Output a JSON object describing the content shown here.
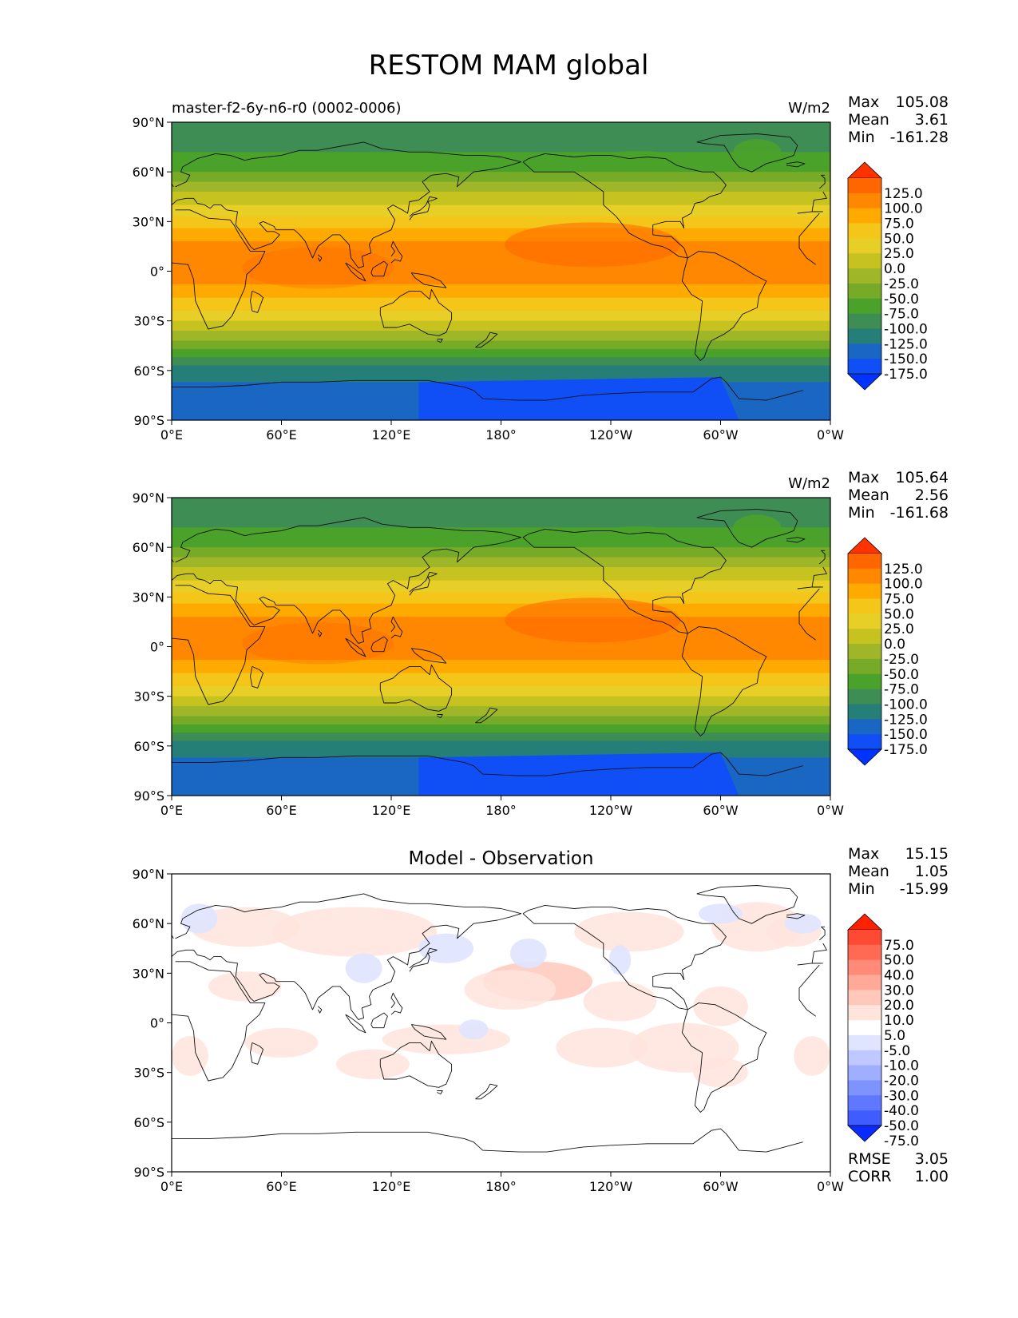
{
  "figure": {
    "title": "RESTOM MAM global"
  },
  "chart_data": [
    {
      "type": "heatmap",
      "panel": "model",
      "title_left": "master-f2-6y-n6-r0 (0002-0006)",
      "title_center": "",
      "units": "W/m2",
      "stats": [
        {
          "label": "Max",
          "value": "105.08"
        },
        {
          "label": "Mean",
          "value": "3.61"
        },
        {
          "label": "Min",
          "value": "-161.28"
        }
      ],
      "bottom_stats": [],
      "x_ticks": [
        "0°E",
        "60°E",
        "120°E",
        "180°",
        "120°W",
        "60°W",
        "0°W"
      ],
      "y_ticks": [
        "90°N",
        "60°N",
        "30°N",
        "0°",
        "30°S",
        "60°S",
        "90°S"
      ],
      "xlim": [
        0,
        360
      ],
      "ylim": [
        -90,
        90
      ],
      "colorbar_levels": [
        "125.0",
        "100.0",
        "75.0",
        "50.0",
        "25.0",
        "0.0",
        "-25.0",
        "-50.0",
        "-75.0",
        "-100.0",
        "-125.0",
        "-150.0",
        "-175.0"
      ],
      "colorbar_colors": [
        "#ff3300",
        "#ff6600",
        "#ff8800",
        "#ffaa00",
        "#f5c61a",
        "#e8cf28",
        "#c6c21f",
        "#9fb628",
        "#77ab27",
        "#4aa22a",
        "#3e8d55",
        "#257e78",
        "#1a66c3",
        "#0f4ff5",
        "#0033ff"
      ]
    },
    {
      "type": "heatmap",
      "panel": "observation",
      "title_left": "",
      "title_center": "",
      "units": "W/m2",
      "stats": [
        {
          "label": "Max",
          "value": "105.64"
        },
        {
          "label": "Mean",
          "value": "2.56"
        },
        {
          "label": "Min",
          "value": "-161.68"
        }
      ],
      "bottom_stats": [],
      "x_ticks": [
        "0°E",
        "60°E",
        "120°E",
        "180°",
        "120°W",
        "60°W",
        "0°W"
      ],
      "y_ticks": [
        "90°N",
        "60°N",
        "30°N",
        "0°",
        "30°S",
        "60°S",
        "90°S"
      ],
      "xlim": [
        0,
        360
      ],
      "ylim": [
        -90,
        90
      ],
      "colorbar_levels": [
        "125.0",
        "100.0",
        "75.0",
        "50.0",
        "25.0",
        "0.0",
        "-25.0",
        "-50.0",
        "-75.0",
        "-100.0",
        "-125.0",
        "-150.0",
        "-175.0"
      ],
      "colorbar_colors": [
        "#ff3300",
        "#ff6600",
        "#ff8800",
        "#ffaa00",
        "#f5c61a",
        "#e8cf28",
        "#c6c21f",
        "#9fb628",
        "#77ab27",
        "#4aa22a",
        "#3e8d55",
        "#257e78",
        "#1a66c3",
        "#0f4ff5",
        "#0033ff"
      ]
    },
    {
      "type": "heatmap",
      "panel": "difference",
      "title_left": "",
      "title_center": "Model - Observation",
      "units": "",
      "stats": [
        {
          "label": "Max",
          "value": "15.15"
        },
        {
          "label": "Mean",
          "value": "1.05"
        },
        {
          "label": "Min",
          "value": "-15.99"
        }
      ],
      "bottom_stats": [
        {
          "label": "RMSE",
          "value": "3.05"
        },
        {
          "label": "CORR",
          "value": "1.00"
        }
      ],
      "x_ticks": [
        "0°E",
        "60°E",
        "120°E",
        "180°",
        "120°W",
        "60°W",
        "0°W"
      ],
      "y_ticks": [
        "90°N",
        "60°N",
        "30°N",
        "0°",
        "30°S",
        "60°S",
        "90°S"
      ],
      "xlim": [
        0,
        360
      ],
      "ylim": [
        -90,
        90
      ],
      "colorbar_levels": [
        "75.0",
        "50.0",
        "40.0",
        "30.0",
        "20.0",
        "10.0",
        "5.0",
        "-5.0",
        "-10.0",
        "-20.0",
        "-30.0",
        "-40.0",
        "-50.0",
        "-75.0"
      ],
      "colorbar_colors": [
        "#ff2200",
        "#ff4a33",
        "#ff6a55",
        "#ff8a77",
        "#ffaa99",
        "#ffc8bb",
        "#ffe4dc",
        "#ffffff",
        "#dfe4ff",
        "#bfc9ff",
        "#9faeff",
        "#7f93ff",
        "#5f78ff",
        "#3f5dff",
        "#0a2aff"
      ]
    }
  ]
}
